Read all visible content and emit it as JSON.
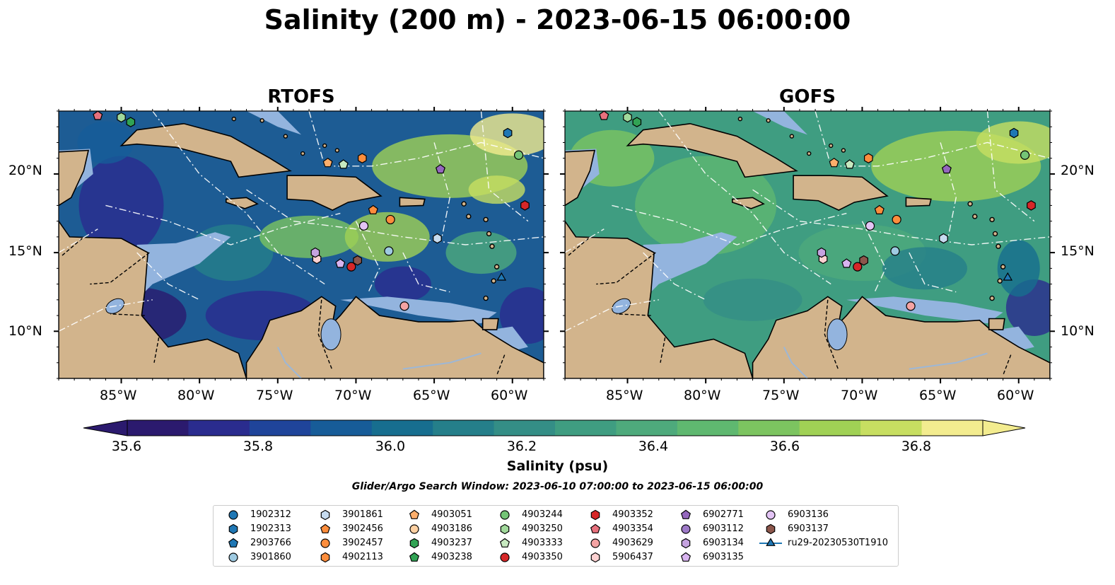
{
  "title": "Salinity (200 m) - 2023-06-15 06:00:00",
  "panels": [
    {
      "title": "RTOFS"
    },
    {
      "title": "GOFS"
    }
  ],
  "axes": {
    "x_ticks": [
      "85°W",
      "80°W",
      "75°W",
      "70°W",
      "65°W",
      "60°W"
    ],
    "y_ticks": [
      "20°N",
      "15°N",
      "10°N"
    ]
  },
  "colorbar": {
    "label": "Salinity (psu)",
    "ticks": [
      "35.6",
      "35.8",
      "36.0",
      "36.2",
      "36.4",
      "36.6",
      "36.8"
    ],
    "extend": "both",
    "colors": [
      "#2b1a6e",
      "#2a2c8e",
      "#1f449a",
      "#175c98",
      "#176e8f",
      "#257f8a",
      "#348e86",
      "#3f9d81",
      "#4eaa7c",
      "#5fb870",
      "#7cc460",
      "#a0d155",
      "#c7de61",
      "#f3ec8f"
    ]
  },
  "search_window": "Glider/Argo Search Window: 2023-06-10 07:00:00 to 2023-06-15 06:00:00",
  "chart_data": {
    "type": "map",
    "variable": "Salinity",
    "depth": "200 m",
    "time": "2023-06-15 06:00:00",
    "units": "psu",
    "lon_range": [
      -89,
      -58
    ],
    "lat_range": [
      7,
      24
    ],
    "color_range": [
      35.5,
      37.0
    ],
    "colorbar_ticks": [
      35.6,
      35.8,
      36.0,
      36.2,
      36.4,
      36.6,
      36.8
    ],
    "models": [
      "RTOFS",
      "GOFS"
    ],
    "platforms": [
      {
        "id": "1902312",
        "marker": "circle",
        "color": "#1f77b4",
        "lon": null,
        "lat": null
      },
      {
        "id": "1902313",
        "marker": "hexagon",
        "color": "#1f77b4",
        "lon": -60.3,
        "lat": 22.6
      },
      {
        "id": "2903766",
        "marker": "pentagon",
        "color": "#1f77b4",
        "lon": null,
        "lat": null
      },
      {
        "id": "3901860",
        "marker": "circle",
        "color": "#9ecae1",
        "lon": -67.9,
        "lat": 15.1
      },
      {
        "id": "3901861",
        "marker": "hexagon",
        "color": "#c6dbef",
        "lon": -64.8,
        "lat": 15.9
      },
      {
        "id": "3902456",
        "marker": "pentagon",
        "color": "#fd8d3c",
        "lon": -68.9,
        "lat": 17.7
      },
      {
        "id": "3902457",
        "marker": "circle",
        "color": "#fd8d3c",
        "lon": -67.8,
        "lat": 17.1
      },
      {
        "id": "4902113",
        "marker": "hexagon",
        "color": "#fd8d3c",
        "lon": -69.6,
        "lat": 21.0
      },
      {
        "id": "4903051",
        "marker": "pentagon",
        "color": "#fdae6b",
        "lon": -71.8,
        "lat": 20.7
      },
      {
        "id": "4903186",
        "marker": "circle",
        "color": "#fdd0a2",
        "lon": null,
        "lat": null
      },
      {
        "id": "4903237",
        "marker": "hexagon",
        "color": "#31a354",
        "lon": -84.4,
        "lat": 23.3
      },
      {
        "id": "4903238",
        "marker": "pentagon",
        "color": "#31a354",
        "lon": null,
        "lat": null
      },
      {
        "id": "4903244",
        "marker": "circle",
        "color": "#74c476",
        "lon": -59.6,
        "lat": 21.2
      },
      {
        "id": "4903250",
        "marker": "hexagon",
        "color": "#a1d99b",
        "lon": -85.0,
        "lat": 23.6
      },
      {
        "id": "4903333",
        "marker": "pentagon",
        "color": "#c7e9c0",
        "lon": -70.8,
        "lat": 20.6
      },
      {
        "id": "4903350",
        "marker": "circle",
        "color": "#d62728",
        "lon": -70.3,
        "lat": 14.1
      },
      {
        "id": "4903352",
        "marker": "hexagon",
        "color": "#d62728",
        "lon": -59.2,
        "lat": 18.0
      },
      {
        "id": "4903354",
        "marker": "pentagon",
        "color": "#e7717d",
        "lon": -86.5,
        "lat": 23.7
      },
      {
        "id": "4903629",
        "marker": "circle",
        "color": "#f4a3a3",
        "lon": -66.9,
        "lat": 11.6
      },
      {
        "id": "5906437",
        "marker": "hexagon",
        "color": "#fcd1d1",
        "lon": -72.5,
        "lat": 14.6
      },
      {
        "id": "6902771",
        "marker": "pentagon",
        "color": "#9467bd",
        "lon": -64.6,
        "lat": 20.3
      },
      {
        "id": "6903112",
        "marker": "circle",
        "color": "#9e7ac8",
        "lon": null,
        "lat": null
      },
      {
        "id": "6903134",
        "marker": "hexagon",
        "color": "#c5a3e0",
        "lon": -72.6,
        "lat": 15.0
      },
      {
        "id": "6903135",
        "marker": "pentagon",
        "color": "#d8b4f0",
        "lon": -71.0,
        "lat": 14.3
      },
      {
        "id": "6903136",
        "marker": "circle",
        "color": "#e3c4f5",
        "lon": -69.5,
        "lat": 16.7
      },
      {
        "id": "6903137",
        "marker": "hexagon",
        "color": "#8c564b",
        "lon": -69.9,
        "lat": 14.5
      },
      {
        "id": "ru29-20230530T1910",
        "marker": "triangle-line",
        "color": "#1f77b4",
        "lon": -60.7,
        "lat": 13.4
      }
    ]
  },
  "legend": {
    "entries": [
      {
        "label": "1902312",
        "marker": "circle",
        "color": "#1f77b4"
      },
      {
        "label": "1902313",
        "marker": "hexagon",
        "color": "#1f77b4"
      },
      {
        "label": "2903766",
        "marker": "pentagon",
        "color": "#1f77b4"
      },
      {
        "label": "3901860",
        "marker": "circle",
        "color": "#9ecae1"
      },
      {
        "label": "3901861",
        "marker": "hexagon",
        "color": "#c6dbef"
      },
      {
        "label": "3902456",
        "marker": "pentagon",
        "color": "#fd8d3c"
      },
      {
        "label": "3902457",
        "marker": "circle",
        "color": "#fd8d3c"
      },
      {
        "label": "4902113",
        "marker": "hexagon",
        "color": "#fd8d3c"
      },
      {
        "label": "4903051",
        "marker": "pentagon",
        "color": "#fdae6b"
      },
      {
        "label": "4903186",
        "marker": "circle",
        "color": "#fdd0a2"
      },
      {
        "label": "4903237",
        "marker": "hexagon",
        "color": "#31a354"
      },
      {
        "label": "4903238",
        "marker": "pentagon",
        "color": "#31a354"
      },
      {
        "label": "4903244",
        "marker": "circle",
        "color": "#74c476"
      },
      {
        "label": "4903250",
        "marker": "hexagon",
        "color": "#a1d99b"
      },
      {
        "label": "4903333",
        "marker": "pentagon",
        "color": "#c7e9c0"
      },
      {
        "label": "4903350",
        "marker": "circle",
        "color": "#d62728"
      },
      {
        "label": "4903352",
        "marker": "hexagon",
        "color": "#d62728"
      },
      {
        "label": "4903354",
        "marker": "pentagon",
        "color": "#e7717d"
      },
      {
        "label": "4903629",
        "marker": "circle",
        "color": "#f4a3a3"
      },
      {
        "label": "5906437",
        "marker": "hexagon",
        "color": "#fcd1d1"
      },
      {
        "label": "6902771",
        "marker": "pentagon",
        "color": "#9467bd"
      },
      {
        "label": "6903112",
        "marker": "circle",
        "color": "#9e7ac8"
      },
      {
        "label": "6903134",
        "marker": "hexagon",
        "color": "#c5a3e0"
      },
      {
        "label": "6903135",
        "marker": "pentagon",
        "color": "#d8b4f0"
      },
      {
        "label": "6903136",
        "marker": "circle",
        "color": "#e3c4f5"
      },
      {
        "label": "6903137",
        "marker": "hexagon",
        "color": "#8c564b"
      },
      {
        "label": "ru29-20230530T1910",
        "marker": "triangle-line",
        "color": "#1f77b4"
      }
    ]
  },
  "colors": {
    "land": "#d2b48c",
    "shelf": "#93b4de",
    "coast": "#000000",
    "eez_lines": "#ffffff",
    "river": "#9db7d6"
  }
}
